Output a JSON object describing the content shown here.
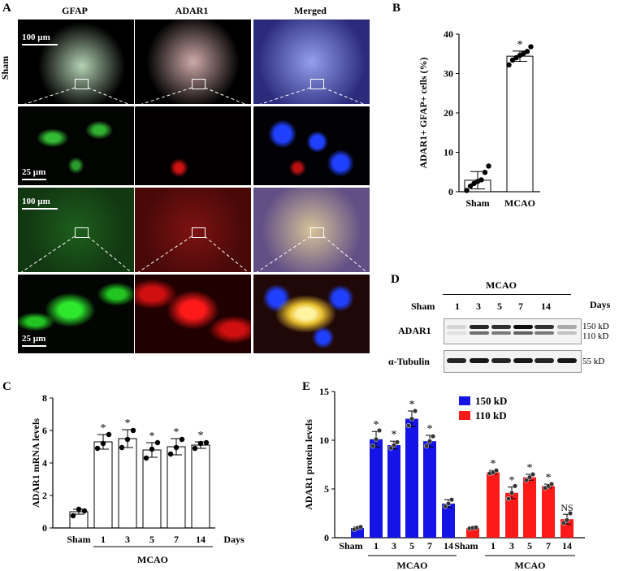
{
  "panels": {
    "A": "A",
    "B": "B",
    "C": "C",
    "D": "D",
    "E": "E"
  },
  "panelA": {
    "col_titles": [
      "GFAP",
      "ADAR1",
      "Merged"
    ],
    "row_label_sham": "Sham",
    "scale_100": "100 µm",
    "scale_25": "25 µm",
    "colors": {
      "gfap": "#22c422",
      "adar1": "#e01010",
      "dapi": "#2040ff",
      "merged": "#e8d070"
    }
  },
  "panelB": {
    "chart_data": {
      "type": "bar",
      "categories": [
        "Sham",
        "MCAO"
      ],
      "values": [
        2.9,
        34.4
      ],
      "errors": [
        2.2,
        1.3
      ],
      "points": [
        [
          0.3,
          1.4,
          2.1,
          2.6,
          3.0,
          4.9,
          6.5
        ],
        [
          32.2,
          33.4,
          34.0,
          34.6,
          35.1,
          35.6,
          36.8
        ]
      ],
      "stars": [
        "",
        "*"
      ],
      "ylabel": "ADAR1+ GFAP+ cells (%)",
      "ylim": [
        0,
        40
      ],
      "yticks": [
        0,
        10,
        20,
        30,
        40
      ]
    }
  },
  "panelC": {
    "chart_data": {
      "type": "bar",
      "categories": [
        "Sham",
        "1",
        "3",
        "5",
        "7",
        "14"
      ],
      "values": [
        1.0,
        5.3,
        5.5,
        4.8,
        5.0,
        5.1
      ],
      "errors": [
        0.15,
        0.45,
        0.55,
        0.45,
        0.5,
        0.2
      ],
      "points": [
        [
          0.75,
          1.15,
          1.05
        ],
        [
          4.9,
          5.2,
          5.75
        ],
        [
          4.95,
          5.45,
          6.0
        ],
        [
          4.3,
          4.85,
          5.25
        ],
        [
          4.55,
          4.95,
          5.45
        ],
        [
          4.9,
          5.2,
          5.25
        ]
      ],
      "stars": [
        "",
        "*",
        "*",
        "*",
        "*",
        "*"
      ],
      "ylabel": "ADAR1 mRNA levels",
      "ylim": [
        0,
        8
      ],
      "yticks": [
        0,
        2,
        4,
        6,
        8
      ],
      "xsuffix": "Days",
      "group_label": "MCAO"
    }
  },
  "panelD": {
    "header_group": "MCAO",
    "lanes": [
      "Sham",
      "1",
      "3",
      "5",
      "7",
      "14"
    ],
    "days_label": "Days",
    "row_labels": [
      "ADAR1",
      "α-Tubulin"
    ],
    "mw": [
      "150 kD",
      "110 kD",
      "55 kD"
    ],
    "adar1_150": [
      0.12,
      0.85,
      0.8,
      0.95,
      0.8,
      0.3
    ],
    "adar1_110": [
      0.08,
      0.55,
      0.5,
      0.6,
      0.5,
      0.2
    ],
    "tubulin": [
      0.85,
      0.9,
      0.85,
      0.9,
      0.85,
      0.9
    ]
  },
  "panelE": {
    "chart_data": {
      "type": "bar",
      "ylabel": "ADAR1 protein levels",
      "ylim": [
        0,
        15
      ],
      "yticks": [
        0,
        5,
        10,
        15
      ],
      "categories": [
        "Sham",
        "1",
        "3",
        "5",
        "7",
        "14"
      ],
      "series": [
        {
          "name": "150 kD",
          "color": "#1414e6",
          "values": [
            1.0,
            10.1,
            9.5,
            12.2,
            9.9,
            3.5
          ],
          "errors": [
            0.1,
            0.8,
            0.4,
            0.8,
            0.6,
            0.4
          ],
          "points": [
            [
              0.85,
              1.0,
              1.1
            ],
            [
              9.4,
              10.1,
              11.0
            ],
            [
              9.2,
              9.5,
              9.8
            ],
            [
              11.5,
              12.2,
              13.0
            ],
            [
              9.4,
              9.9,
              10.4
            ],
            [
              3.2,
              3.5,
              3.9
            ]
          ],
          "stars": [
            "",
            "*",
            "*",
            "*",
            "*",
            ""
          ]
        },
        {
          "name": "110 kD",
          "color": "#ff1a1a",
          "values": [
            1.0,
            6.7,
            4.6,
            6.2,
            5.3,
            1.9
          ],
          "errors": [
            0.08,
            0.2,
            0.6,
            0.3,
            0.2,
            0.5
          ],
          "points": [
            [
              0.95,
              1.0,
              1.05
            ],
            [
              6.6,
              6.7,
              6.9
            ],
            [
              4.0,
              4.6,
              5.3
            ],
            [
              5.9,
              6.2,
              6.5
            ],
            [
              5.1,
              5.3,
              5.5
            ],
            [
              1.5,
              1.8,
              2.5
            ]
          ],
          "stars": [
            "",
            "*",
            "*",
            "*",
            "*",
            "NS"
          ]
        }
      ],
      "group_label": "MCAO"
    }
  }
}
